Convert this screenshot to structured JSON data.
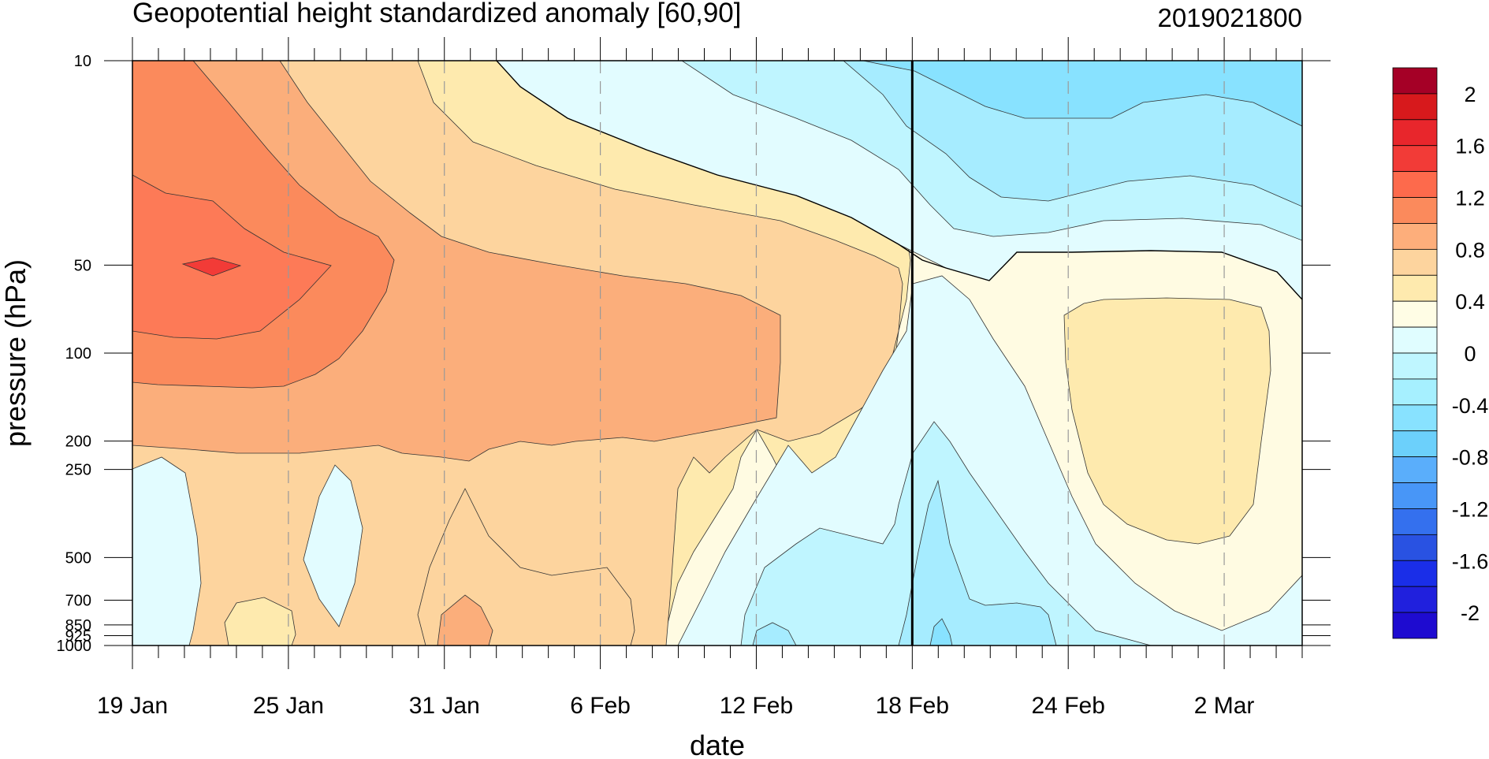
{
  "chart_data": {
    "type": "heatmap",
    "subtype": "filled-contour",
    "title": "Geopotential height standardized anomaly [60,90]",
    "timestamp": "2019021800",
    "xlabel": "date",
    "ylabel": "pressure (hPa)",
    "x_ticks": [
      "19 Jan",
      "25 Jan",
      "31 Jan",
      "6 Feb",
      "12 Feb",
      "18 Feb",
      "24 Feb",
      "2 Mar"
    ],
    "y_ticks": [
      "10",
      "50",
      "100",
      "200",
      "250",
      "500",
      "700",
      "850",
      "925",
      "1000"
    ],
    "y_scale": "log",
    "ylim": [
      1000,
      10
    ],
    "xlim_days": [
      0,
      45
    ],
    "current_date_marker": "18 Feb",
    "colorbar": {
      "labels": [
        "2",
        "1.6",
        "1.2",
        "0.8",
        "0.4",
        "0",
        "-0.4",
        "-0.8",
        "-1.2",
        "-1.6",
        "-2"
      ],
      "colors": [
        "#a50026",
        "#d7191c",
        "#e8262c",
        "#f23b37",
        "#fd6a4c",
        "#fb8a5c",
        "#fdae7b",
        "#fdd49e",
        "#feeaae",
        "#fffde5",
        "#e0fdff",
        "#bff6ff",
        "#a6f0ff",
        "#88e2ff",
        "#6cd0fb",
        "#5aaefb",
        "#4896f7",
        "#3470ee",
        "#2952e2",
        "#1a2ee8",
        "#2020dd",
        "#1e0bd0"
      ]
    },
    "levels": [
      {
        "level": "0.8-1.2",
        "color": "#fd8a5c"
      },
      {
        "level": "0.4-0.8",
        "color": "#fbae7b"
      },
      {
        "level": "0.2-0.4",
        "color": "#fdd49e"
      },
      {
        "level": "0-0.2",
        "color": "#feeaae"
      },
      {
        "level": "-0.2-0",
        "color": "#fffbe2"
      },
      {
        "level": "-0.4-0.2",
        "color": "#e2fcff"
      },
      {
        "level": "-0.6-0.4",
        "color": "#bff5ff"
      },
      {
        "level": "-0.8-0.6",
        "color": "#a6ecff"
      },
      {
        "level": "1.2-1.6",
        "color": "#fe7956"
      },
      {
        "level": "1.6-2",
        "color": "#f23b37"
      }
    ]
  }
}
